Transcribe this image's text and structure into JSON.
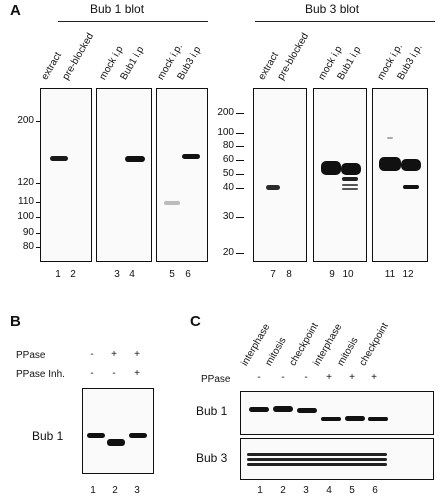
{
  "panel_a": {
    "letter": "A",
    "left_title": "Bub 1 blot",
    "right_title": "Bub 3 blot",
    "left_lane_headers": [
      "extract",
      "pre-blocked",
      "mock i.p",
      "Bub1 i.p",
      "mock i.p.",
      "Bub3 i.p"
    ],
    "right_lane_headers": [
      "extract",
      "pre-blocked",
      "mock i.p",
      "Bub1 i.p",
      "mock i.p.",
      "Bub3 i.p."
    ],
    "left_markers": [
      "200",
      "120",
      "110",
      "100",
      "90",
      "80"
    ],
    "right_markers": [
      "200",
      "100",
      "80",
      "60",
      "50",
      "40",
      "30",
      "20"
    ],
    "left_lane_numbers": [
      "1",
      "2",
      "3",
      "4",
      "5",
      "6"
    ],
    "right_lane_numbers": [
      "7",
      "8",
      "9",
      "10",
      "11",
      "12"
    ]
  },
  "panel_b": {
    "letter": "B",
    "row_labels": [
      "PPase",
      "PPase Inh."
    ],
    "ppase_signs": [
      "-",
      "+",
      "+"
    ],
    "inhibitor_signs": [
      "-",
      "-",
      "+"
    ],
    "blot_label": "Bub 1",
    "lane_numbers": [
      "1",
      "2",
      "3"
    ]
  },
  "panel_c": {
    "letter": "C",
    "lane_headers": [
      "interphase",
      "mitosis",
      "checkpoint",
      "interphase",
      "mitosis",
      "checkpoint"
    ],
    "row_label": "PPase",
    "ppase_signs": [
      "-",
      "-",
      "-",
      "+",
      "+",
      "+"
    ],
    "blot_labels": [
      "Bub 1",
      "Bub 3"
    ],
    "lane_numbers": [
      "1",
      "2",
      "3",
      "4",
      "5",
      "6"
    ]
  }
}
